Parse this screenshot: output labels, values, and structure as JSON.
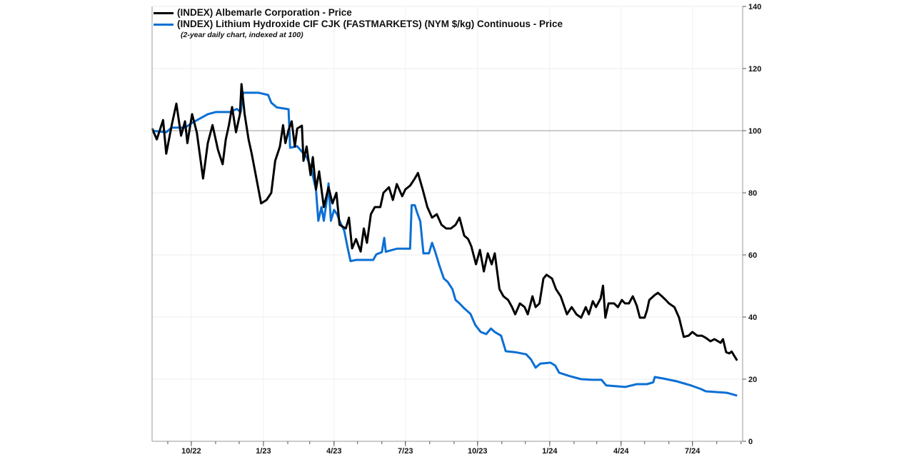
{
  "chart_data": {
    "type": "line",
    "title": "",
    "note": "(2-year daily chart, indexed at 100)",
    "xlabel": "",
    "ylabel": "",
    "ylim": [
      0,
      140
    ],
    "yticks": [
      "0",
      "20",
      "40",
      "60",
      "80",
      "100",
      "120",
      "140"
    ],
    "y_axis_side": "right",
    "x_tick_labels": [
      "10/22",
      "1/23",
      "4/23",
      "7/23",
      "10/23",
      "1/24",
      "4/24",
      "7/24"
    ],
    "x_tick_dates": [
      "2022-10-01",
      "2023-01-01",
      "2023-04-01",
      "2023-07-01",
      "2023-10-01",
      "2024-01-01",
      "2024-04-01",
      "2024-07-01"
    ],
    "xlim": [
      "2022-08-12",
      "2024-09-03"
    ],
    "reference_line": 100,
    "grid": true,
    "legend_position": "top-left",
    "series": [
      {
        "name": "(INDEX) Albemarle Corporation - Price",
        "color": "#000000",
        "points": [
          [
            "2022-08-12",
            100.7
          ],
          [
            "2022-08-18",
            97.2
          ],
          [
            "2022-08-26",
            103.4
          ],
          [
            "2022-08-30",
            92.6
          ],
          [
            "2022-09-06",
            101.8
          ],
          [
            "2022-09-12",
            108.7
          ],
          [
            "2022-09-18",
            98.4
          ],
          [
            "2022-09-23",
            103
          ],
          [
            "2022-09-26",
            96
          ],
          [
            "2022-10-02",
            105.3
          ],
          [
            "2022-10-08",
            99.5
          ],
          [
            "2022-10-16",
            84.6
          ],
          [
            "2022-10-22",
            96
          ],
          [
            "2022-10-28",
            101.8
          ],
          [
            "2022-11-04",
            93.8
          ],
          [
            "2022-11-10",
            89.2
          ],
          [
            "2022-11-14",
            97.2
          ],
          [
            "2022-11-18",
            101.8
          ],
          [
            "2022-11-22",
            107.6
          ],
          [
            "2022-11-27",
            99.5
          ],
          [
            "2022-12-02",
            105.3
          ],
          [
            "2022-12-04",
            115
          ],
          [
            "2022-12-08",
            105.3
          ],
          [
            "2022-12-13",
            97.2
          ],
          [
            "2022-12-17",
            92.6
          ],
          [
            "2022-12-23",
            84.6
          ],
          [
            "2022-12-29",
            76.6
          ],
          [
            "2023-01-05",
            77.7
          ],
          [
            "2023-01-11",
            80
          ],
          [
            "2023-01-16",
            90.3
          ],
          [
            "2023-01-22",
            94.9
          ],
          [
            "2023-01-26",
            101.8
          ],
          [
            "2023-01-29",
            96
          ],
          [
            "2023-02-02",
            100.2
          ],
          [
            "2023-02-06",
            103
          ],
          [
            "2023-02-10",
            94.9
          ],
          [
            "2023-02-13",
            100.7
          ],
          [
            "2023-02-19",
            101.6
          ],
          [
            "2023-02-21",
            90.3
          ],
          [
            "2023-02-25",
            94.9
          ],
          [
            "2023-03-02",
            85.7
          ],
          [
            "2023-03-05",
            91.5
          ],
          [
            "2023-03-09",
            81.1
          ],
          [
            "2023-03-13",
            86.9
          ],
          [
            "2023-03-19",
            75.4
          ],
          [
            "2023-03-25",
            81.8
          ],
          [
            "2023-03-30",
            76.6
          ],
          [
            "2023-04-04",
            80
          ],
          [
            "2023-04-08",
            69.7
          ],
          [
            "2023-04-16",
            68.5
          ],
          [
            "2023-04-20",
            72
          ],
          [
            "2023-04-24",
            62.1
          ],
          [
            "2023-04-29",
            65.1
          ],
          [
            "2023-05-05",
            61.1
          ],
          [
            "2023-05-09",
            68.5
          ],
          [
            "2023-05-13",
            63.9
          ],
          [
            "2023-05-18",
            73.1
          ],
          [
            "2023-05-23",
            75.4
          ],
          [
            "2023-05-30",
            75.4
          ],
          [
            "2023-06-03",
            80
          ],
          [
            "2023-06-10",
            81.8
          ],
          [
            "2023-06-15",
            77.7
          ],
          [
            "2023-06-20",
            82.8
          ],
          [
            "2023-06-27",
            78.9
          ],
          [
            "2023-07-01",
            81.1
          ],
          [
            "2023-07-07",
            82.3
          ],
          [
            "2023-07-13",
            84.6
          ],
          [
            "2023-07-17",
            86.4
          ],
          [
            "2023-07-23",
            81.1
          ],
          [
            "2023-07-29",
            75.4
          ],
          [
            "2023-08-04",
            72
          ],
          [
            "2023-08-10",
            73.1
          ],
          [
            "2023-08-16",
            69.7
          ],
          [
            "2023-08-22",
            68.5
          ],
          [
            "2023-08-28",
            68.5
          ],
          [
            "2023-09-03",
            69.7
          ],
          [
            "2023-09-08",
            72
          ],
          [
            "2023-09-14",
            66.2
          ],
          [
            "2023-09-19",
            65.1
          ],
          [
            "2023-09-23",
            62.8
          ],
          [
            "2023-09-29",
            57
          ],
          [
            "2023-10-04",
            61.6
          ],
          [
            "2023-10-09",
            54.7
          ],
          [
            "2023-10-14",
            60.5
          ],
          [
            "2023-10-19",
            57
          ],
          [
            "2023-10-23",
            60.5
          ],
          [
            "2023-10-29",
            49
          ],
          [
            "2023-11-03",
            46.7
          ],
          [
            "2023-11-09",
            45.5
          ],
          [
            "2023-11-14",
            43.2
          ],
          [
            "2023-11-18",
            40.9
          ],
          [
            "2023-11-24",
            44.4
          ],
          [
            "2023-11-30",
            43.2
          ],
          [
            "2023-12-04",
            40.9
          ],
          [
            "2023-12-10",
            46.7
          ],
          [
            "2023-12-14",
            43.2
          ],
          [
            "2023-12-19",
            44.4
          ],
          [
            "2023-12-24",
            52.4
          ],
          [
            "2023-12-28",
            53.6
          ],
          [
            "2024-01-04",
            52.4
          ],
          [
            "2024-01-09",
            49
          ],
          [
            "2024-01-15",
            46.7
          ],
          [
            "2024-01-23",
            40.9
          ],
          [
            "2024-01-29",
            43.2
          ],
          [
            "2024-02-04",
            40.9
          ],
          [
            "2024-02-10",
            39.8
          ],
          [
            "2024-02-16",
            43.2
          ],
          [
            "2024-02-20",
            40.9
          ],
          [
            "2024-02-25",
            45.1
          ],
          [
            "2024-02-29",
            43.2
          ],
          [
            "2024-03-06",
            46
          ],
          [
            "2024-03-09",
            50.1
          ],
          [
            "2024-03-12",
            39.8
          ],
          [
            "2024-03-16",
            44.4
          ],
          [
            "2024-03-23",
            44.4
          ],
          [
            "2024-03-28",
            43.2
          ],
          [
            "2024-04-02",
            45.5
          ],
          [
            "2024-04-06",
            44.4
          ],
          [
            "2024-04-11",
            44.4
          ],
          [
            "2024-04-16",
            46.7
          ],
          [
            "2024-04-21",
            43.7
          ],
          [
            "2024-04-25",
            39.8
          ],
          [
            "2024-05-01",
            39.8
          ],
          [
            "2024-05-04",
            42.1
          ],
          [
            "2024-05-07",
            45.5
          ],
          [
            "2024-05-14",
            47.1
          ],
          [
            "2024-05-18",
            47.8
          ],
          [
            "2024-05-23",
            46.7
          ],
          [
            "2024-05-28",
            45.5
          ],
          [
            "2024-06-01",
            44.4
          ],
          [
            "2024-06-08",
            43.2
          ],
          [
            "2024-06-14",
            39.8
          ],
          [
            "2024-06-20",
            33.6
          ],
          [
            "2024-06-26",
            34
          ],
          [
            "2024-07-01",
            35.2
          ],
          [
            "2024-07-07",
            34
          ],
          [
            "2024-07-13",
            34
          ],
          [
            "2024-07-18",
            33.3
          ],
          [
            "2024-07-24",
            32.2
          ],
          [
            "2024-07-29",
            32.9
          ],
          [
            "2024-08-06",
            31.7
          ],
          [
            "2024-08-09",
            32.9
          ],
          [
            "2024-08-13",
            28.7
          ],
          [
            "2024-08-17",
            28.3
          ],
          [
            "2024-08-20",
            28.9
          ],
          [
            "2024-08-27",
            26
          ]
        ]
      },
      {
        "name": "(INDEX) Lithium Hydroxide CIF CJK (FASTMARKETS) (NYM $/kg) Continuous - Price",
        "color": "#0a6fd4",
        "points": [
          [
            "2022-08-12",
            100
          ],
          [
            "2022-08-30",
            99.5
          ],
          [
            "2022-09-06",
            101
          ],
          [
            "2022-09-23",
            101
          ],
          [
            "2022-10-02",
            102.5
          ],
          [
            "2022-10-22",
            105.3
          ],
          [
            "2022-11-01",
            106
          ],
          [
            "2022-11-19",
            106
          ],
          [
            "2022-11-28",
            107
          ],
          [
            "2022-12-03",
            106
          ],
          [
            "2022-12-06",
            112.2
          ],
          [
            "2022-12-26",
            112.2
          ],
          [
            "2023-01-07",
            111.5
          ],
          [
            "2023-01-11",
            109
          ],
          [
            "2023-01-18",
            107.5
          ],
          [
            "2023-02-02",
            106.9
          ],
          [
            "2023-02-04",
            94.5
          ],
          [
            "2023-02-13",
            95
          ],
          [
            "2023-02-25",
            91.5
          ],
          [
            "2023-03-03",
            87.8
          ],
          [
            "2023-03-09",
            81
          ],
          [
            "2023-03-12",
            71
          ],
          [
            "2023-03-16",
            75.4
          ],
          [
            "2023-03-19",
            71
          ],
          [
            "2023-03-23",
            78
          ],
          [
            "2023-03-25",
            83
          ],
          [
            "2023-03-28",
            71
          ],
          [
            "2023-04-01",
            74.5
          ],
          [
            "2023-04-05",
            73
          ],
          [
            "2023-04-08",
            71
          ],
          [
            "2023-04-14",
            67.8
          ],
          [
            "2023-04-18",
            62.7
          ],
          [
            "2023-04-22",
            58
          ],
          [
            "2023-04-29",
            58.4
          ],
          [
            "2023-05-06",
            58.4
          ],
          [
            "2023-05-21",
            58.4
          ],
          [
            "2023-05-25",
            60.2
          ],
          [
            "2023-06-01",
            60.9
          ],
          [
            "2023-06-04",
            65.5
          ],
          [
            "2023-06-06",
            61
          ],
          [
            "2023-06-20",
            62
          ],
          [
            "2023-06-27",
            62
          ],
          [
            "2023-07-07",
            62
          ],
          [
            "2023-07-09",
            76
          ],
          [
            "2023-07-13",
            76
          ],
          [
            "2023-07-16",
            73.6
          ],
          [
            "2023-07-20",
            70.8
          ],
          [
            "2023-07-24",
            60.5
          ],
          [
            "2023-07-31",
            60.5
          ],
          [
            "2023-08-04",
            63.9
          ],
          [
            "2023-08-08",
            61
          ],
          [
            "2023-08-13",
            56.8
          ],
          [
            "2023-08-19",
            52.4
          ],
          [
            "2023-08-24",
            51.3
          ],
          [
            "2023-08-30",
            49
          ],
          [
            "2023-09-03",
            45.5
          ],
          [
            "2023-09-08",
            44.4
          ],
          [
            "2023-09-14",
            42.8
          ],
          [
            "2023-09-22",
            41
          ],
          [
            "2023-09-28",
            37.5
          ],
          [
            "2023-10-05",
            35.2
          ],
          [
            "2023-10-12",
            34.5
          ],
          [
            "2023-10-18",
            36.3
          ],
          [
            "2023-10-23",
            35.2
          ],
          [
            "2023-10-31",
            34
          ],
          [
            "2023-11-06",
            29
          ],
          [
            "2023-11-18",
            28.7
          ],
          [
            "2023-12-02",
            28
          ],
          [
            "2023-12-08",
            26.4
          ],
          [
            "2023-12-14",
            23.7
          ],
          [
            "2023-12-20",
            25
          ],
          [
            "2024-01-02",
            25.3
          ],
          [
            "2024-01-08",
            24.4
          ],
          [
            "2024-01-13",
            22.1
          ],
          [
            "2024-01-26",
            21
          ],
          [
            "2024-02-10",
            20
          ],
          [
            "2024-02-24",
            19.8
          ],
          [
            "2024-03-07",
            19.8
          ],
          [
            "2024-03-13",
            18
          ],
          [
            "2024-04-06",
            17.5
          ],
          [
            "2024-04-21",
            18.4
          ],
          [
            "2024-05-04",
            18.4
          ],
          [
            "2024-05-12",
            19
          ],
          [
            "2024-05-14",
            20.7
          ],
          [
            "2024-05-25",
            20.2
          ],
          [
            "2024-06-11",
            19.3
          ],
          [
            "2024-06-30",
            17.9
          ],
          [
            "2024-07-12",
            16.8
          ],
          [
            "2024-07-18",
            16.1
          ],
          [
            "2024-08-14",
            15.6
          ],
          [
            "2024-08-27",
            14.7
          ]
        ]
      }
    ]
  }
}
